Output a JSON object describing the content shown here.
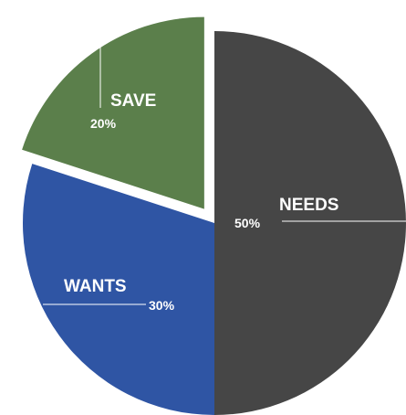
{
  "chart_data": {
    "type": "pie",
    "title": "",
    "legend": "none",
    "slices": [
      {
        "label": "NEEDS",
        "value": 50,
        "value_label": "50%",
        "color": "#464646",
        "exploded": false
      },
      {
        "label": "WANTS",
        "value": 30,
        "value_label": "30%",
        "color": "#2F55A4",
        "exploded": false
      },
      {
        "label": "SAVE",
        "value": 20,
        "value_label": "20%",
        "color": "#5B7F4B",
        "exploded": true
      }
    ]
  }
}
